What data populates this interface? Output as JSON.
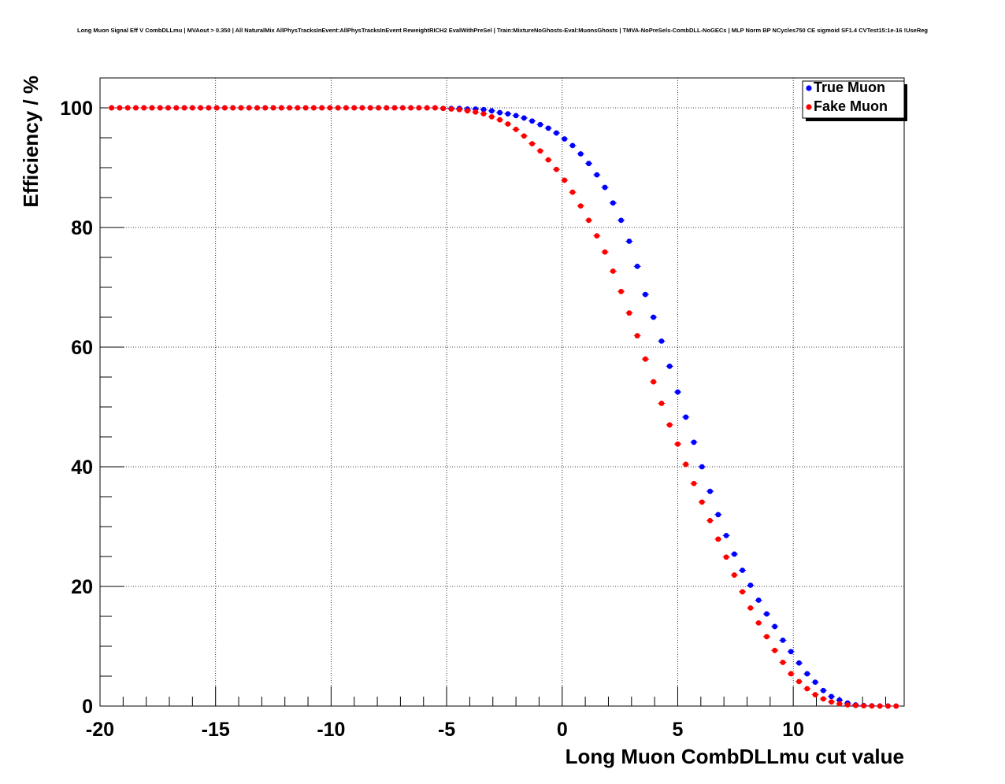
{
  "chart_data": {
    "type": "scatter",
    "title": "Long Muon Signal Eff V CombDLLmu | MVAout > 0.350 | All NaturalMix AllPhysTracksInEvent:AllPhysTracksInEvent ReweightRICH2 EvalWithPreSel | Train:MixtureNoGhosts-Eval:MuonsGhosts | TMVA-NoPreSels-CombDLL-NoGECs | MLP Norm BP NCycles750 CE sigmoid SF1.4 CVTest15:1e-16 !UseReg",
    "xlabel": "Long Muon CombDLLmu cut value",
    "ylabel": "Efficiency / %",
    "xlim": [
      -20,
      14.8
    ],
    "ylim": [
      0,
      105
    ],
    "xticks": [
      -20,
      -15,
      -10,
      -5,
      0,
      5,
      10
    ],
    "xtick_labels": [
      "-20",
      "-15",
      "-10",
      "-5",
      "0",
      "5",
      "10"
    ],
    "yticks": [
      0,
      20,
      40,
      60,
      80,
      100
    ],
    "ytick_labels": [
      "0",
      "20",
      "40",
      "60",
      "80",
      "100"
    ],
    "grid": true,
    "legend_position": "top-right",
    "x": [
      -19.5,
      -19.15,
      -18.8,
      -18.45,
      -18.1,
      -17.75,
      -17.4,
      -17.05,
      -16.7,
      -16.35,
      -16.0,
      -15.65,
      -15.3,
      -14.95,
      -14.6,
      -14.25,
      -13.9,
      -13.55,
      -13.2,
      -12.85,
      -12.5,
      -12.15,
      -11.8,
      -11.45,
      -11.1,
      -10.75,
      -10.4,
      -10.05,
      -9.7,
      -9.35,
      -9.0,
      -8.65,
      -8.3,
      -7.95,
      -7.6,
      -7.25,
      -6.9,
      -6.55,
      -6.2,
      -5.85,
      -5.5,
      -5.15,
      -4.8,
      -4.45,
      -4.1,
      -3.75,
      -3.4,
      -3.05,
      -2.7,
      -2.35,
      -2.0,
      -1.65,
      -1.3,
      -0.95,
      -0.6,
      -0.25,
      0.1,
      0.45,
      0.8,
      1.15,
      1.5,
      1.85,
      2.2,
      2.55,
      2.9,
      3.25,
      3.6,
      3.95,
      4.3,
      4.65,
      5.0,
      5.35,
      5.7,
      6.05,
      6.4,
      6.75,
      7.1,
      7.45,
      7.8,
      8.15,
      8.5,
      8.85,
      9.2,
      9.55,
      9.9,
      10.25,
      10.6,
      10.95,
      11.3,
      11.65,
      12.0,
      12.35,
      12.7,
      13.05,
      13.4,
      13.75,
      14.1,
      14.45
    ],
    "series": [
      {
        "name": "True Muon",
        "color": "#0000ff",
        "values": [
          100,
          100,
          100,
          100,
          100,
          100,
          100,
          100,
          100,
          100,
          100,
          100,
          100,
          100,
          100,
          100,
          100,
          100,
          100,
          100,
          100,
          100,
          100,
          100,
          100,
          100,
          100,
          100,
          100,
          100,
          100,
          100,
          100,
          100,
          100,
          100,
          100,
          100,
          100,
          100,
          100,
          99.9,
          99.9,
          99.9,
          99.8,
          99.8,
          99.7,
          99.5,
          99.2,
          99.0,
          98.7,
          98.3,
          97.8,
          97.2,
          96.6,
          95.8,
          94.8,
          93.7,
          92.3,
          90.7,
          88.8,
          86.7,
          84.1,
          81.2,
          77.7,
          73.5,
          68.8,
          65.0,
          61.0,
          56.8,
          52.5,
          48.3,
          44.1,
          40.0,
          35.9,
          32.0,
          28.5,
          25.4,
          22.7,
          20.2,
          17.7,
          15.4,
          13.3,
          11.0,
          9.1,
          7.2,
          5.4,
          4.0,
          2.6,
          1.6,
          1.0,
          0.5,
          0.2,
          0.1,
          0.05,
          0.02,
          0.01,
          0.0
        ]
      },
      {
        "name": "Fake Muon",
        "color": "#ff0000",
        "values": [
          100,
          100,
          100,
          100,
          100,
          100,
          100,
          100,
          100,
          100,
          100,
          100,
          100,
          100,
          100,
          100,
          100,
          100,
          100,
          100,
          100,
          100,
          100,
          100,
          100,
          100,
          100,
          100,
          100,
          100,
          100,
          100,
          100,
          100,
          100,
          100,
          100,
          100,
          100,
          100,
          100,
          99.9,
          99.8,
          99.7,
          99.5,
          99.3,
          99.0,
          98.5,
          98.0,
          97.3,
          96.4,
          95.3,
          94.0,
          92.8,
          91.3,
          89.7,
          87.9,
          85.9,
          83.6,
          81.2,
          78.6,
          75.9,
          72.7,
          69.3,
          65.7,
          61.9,
          58.0,
          54.2,
          50.6,
          47.0,
          43.8,
          40.4,
          37.2,
          34.1,
          31.0,
          27.9,
          24.9,
          21.9,
          19.1,
          16.4,
          13.9,
          11.6,
          9.3,
          7.3,
          5.4,
          4.1,
          2.9,
          1.9,
          1.2,
          0.7,
          0.4,
          0.2,
          0.1,
          0.05,
          0.02,
          0.01,
          0.0,
          0.0
        ]
      }
    ]
  }
}
